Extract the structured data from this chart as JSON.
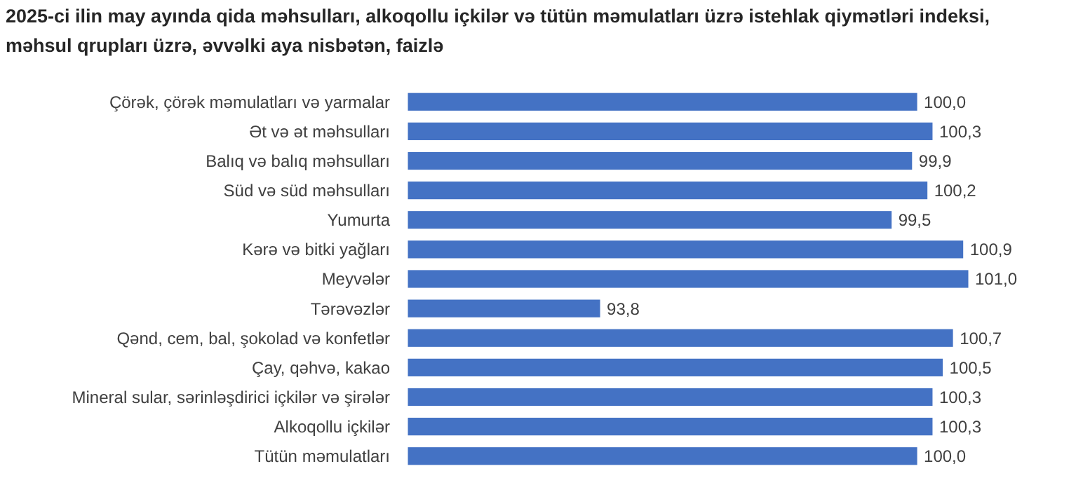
{
  "chart_data": {
    "type": "bar",
    "orientation": "horizontal",
    "title": "2025-ci ilin may ayında qida məhsulları, alkoqollu içkilər və tütün məmulatları üzrə istehlak qiymətləri indeksi, məhsul qrupları üzrə, əvvəlki aya nisbətən, faizlə",
    "categories": [
      "Çörək, çörək məmulatları və yarmalar",
      "Ət və ət məhsulları",
      "Balıq və balıq məhsulları",
      "Süd və süd məhsulları",
      "Yumurta",
      "Kərə və bitki yağları",
      "Meyvələr",
      "Tərəvəzlər",
      "Qənd, cem, bal, şokolad və konfetlər",
      "Çay, qəhvə, kakao",
      "Mineral sular, sərinləşdirici içkilər və şirələr",
      "Alkoqollu içkilər",
      "Tütün məmulatları"
    ],
    "values": [
      100.0,
      100.3,
      99.9,
      100.2,
      99.5,
      100.9,
      101.0,
      93.8,
      100.7,
      100.5,
      100.3,
      100.3,
      100.0
    ],
    "value_labels": [
      "100,0",
      "100,3",
      "99,9",
      "100,2",
      "99,5",
      "100,9",
      "101,0",
      "93,8",
      "100,7",
      "100,5",
      "100,3",
      "100,3",
      "100,0"
    ],
    "color": "#4472c4",
    "xlim": [
      90,
      101
    ],
    "tick_labels": "y"
  }
}
